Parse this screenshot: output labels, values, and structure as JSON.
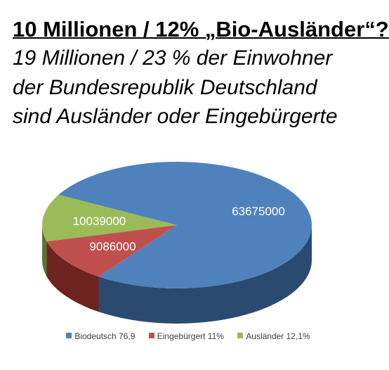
{
  "page": {
    "title": "10 Millionen / 12% „Bio-Ausländer“?",
    "subtitle_lines": [
      "19 Millionen / 23 % der Einwohner",
      "der Bundesrepublik Deutschland",
      "sind Ausländer oder Eingebürgerte"
    ]
  },
  "chart_data": {
    "type": "pie",
    "style": "3d",
    "slices": [
      {
        "legend": "Biodeutsch 76,9",
        "value": 63675000,
        "label": "63675000",
        "color": "#4f81bd",
        "side_color": "#2a4a70"
      },
      {
        "legend": "Eingebürgert 11%",
        "value": 9086000,
        "label": "9086000",
        "color": "#c0504d",
        "side_color": "#6e2321"
      },
      {
        "legend": "Ausländer 12,1%",
        "value": 10039000,
        "label": "10039000",
        "color": "#9bbb59",
        "side_color": "#5a7330"
      }
    ],
    "legend_position": "bottom"
  }
}
